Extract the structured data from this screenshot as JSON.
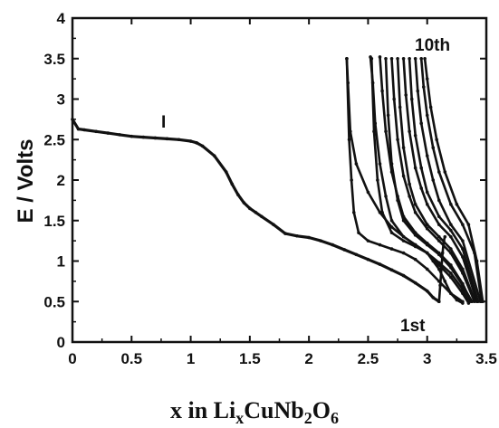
{
  "chart_data": {
    "type": "line",
    "title": "",
    "xlabel": {
      "base": "x in Li",
      "sub1": "x",
      "mid": "CuNb",
      "sub2": "2",
      "tail": "O",
      "sub3": "6"
    },
    "ylabel": "E / Volts",
    "xlim": [
      0,
      3.5
    ],
    "ylim": [
      0,
      4
    ],
    "x_ticks": [
      "0",
      "0.5",
      "1",
      "1.5",
      "2",
      "2.5",
      "3",
      "3.5"
    ],
    "y_ticks": [
      "0",
      "0.5",
      "1",
      "1.5",
      "2",
      "2.5",
      "3",
      "3.5",
      "4"
    ],
    "annotations": {
      "discharge_label": "I",
      "first_cycle": "1st",
      "tenth_cycle": "10th"
    },
    "color": "#111111",
    "series": [
      {
        "values_x": [
          0.0,
          0.05,
          0.1,
          0.2,
          0.3,
          0.4,
          0.5,
          0.6,
          0.7,
          0.8,
          0.9,
          1.0,
          1.05,
          1.1,
          1.2,
          1.3,
          1.35,
          1.4,
          1.45,
          1.5,
          1.55,
          1.6,
          1.7,
          1.8,
          1.9,
          2.0,
          2.1,
          2.2,
          2.3,
          2.4,
          2.5,
          2.6,
          2.7,
          2.8,
          2.9,
          3.0,
          3.05,
          3.1
        ],
        "values_y": [
          2.75,
          2.63,
          2.62,
          2.6,
          2.58,
          2.56,
          2.54,
          2.53,
          2.52,
          2.51,
          2.5,
          2.48,
          2.46,
          2.42,
          2.3,
          2.1,
          1.95,
          1.82,
          1.72,
          1.65,
          1.6,
          1.55,
          1.45,
          1.34,
          1.31,
          1.29,
          1.25,
          1.2,
          1.14,
          1.08,
          1.02,
          0.96,
          0.89,
          0.82,
          0.73,
          0.63,
          0.55,
          0.5
        ]
      },
      {
        "values_x": [
          3.1,
          3.11,
          3.12,
          3.13,
          3.14,
          3.15
        ],
        "values_y": [
          0.5,
          0.7,
          0.9,
          1.1,
          1.25,
          1.3
        ]
      },
      {
        "values_x": [
          2.32,
          2.33,
          2.35,
          2.4,
          2.5,
          2.6,
          2.7,
          2.8,
          2.9,
          3.0,
          3.05,
          3.1,
          3.15,
          3.2,
          3.25,
          3.3
        ],
        "values_y": [
          3.5,
          3.2,
          2.6,
          2.2,
          1.85,
          1.6,
          1.42,
          1.3,
          1.2,
          1.1,
          1.0,
          0.9,
          0.75,
          0.6,
          0.52,
          0.48
        ]
      },
      {
        "values_x": [
          2.32,
          2.34,
          2.36,
          2.38,
          2.42,
          2.5,
          2.6,
          2.7,
          2.8,
          2.9,
          3.0,
          3.1,
          3.2,
          3.3
        ],
        "values_y": [
          3.5,
          2.5,
          2.0,
          1.6,
          1.35,
          1.25,
          1.2,
          1.15,
          1.1,
          1.02,
          0.9,
          0.75,
          0.6,
          0.5
        ]
      },
      {
        "values_x": [
          2.52,
          2.54,
          2.56,
          2.6,
          2.65,
          2.7,
          2.8,
          2.9,
          3.0,
          3.1,
          3.2,
          3.3,
          3.35
        ],
        "values_y": [
          3.52,
          3.2,
          2.7,
          2.2,
          1.8,
          1.5,
          1.3,
          1.2,
          1.1,
          0.95,
          0.8,
          0.6,
          0.48
        ]
      },
      {
        "values_x": [
          2.53,
          2.55,
          2.58,
          2.62,
          2.7,
          2.8,
          2.9,
          3.0,
          3.1,
          3.2,
          3.3,
          3.35
        ],
        "values_y": [
          3.5,
          2.6,
          2.0,
          1.6,
          1.35,
          1.25,
          1.18,
          1.1,
          0.98,
          0.85,
          0.65,
          0.5
        ]
      },
      {
        "values_x": [
          2.6,
          2.62,
          2.65,
          2.7,
          2.75,
          2.8,
          2.9,
          3.0,
          3.1,
          3.2,
          3.3,
          3.37
        ],
        "values_y": [
          3.52,
          3.1,
          2.6,
          2.1,
          1.8,
          1.55,
          1.35,
          1.22,
          1.1,
          0.95,
          0.72,
          0.5
        ]
      },
      {
        "values_x": [
          2.65,
          2.67,
          2.7,
          2.75,
          2.8,
          2.9,
          3.0,
          3.1,
          3.2,
          3.3,
          3.38
        ],
        "values_y": [
          3.5,
          2.8,
          2.2,
          1.75,
          1.5,
          1.32,
          1.2,
          1.08,
          0.92,
          0.7,
          0.5
        ]
      },
      {
        "values_x": [
          2.7,
          2.72,
          2.75,
          2.8,
          2.85,
          2.9,
          3.0,
          3.1,
          3.2,
          3.3,
          3.4
        ],
        "values_y": [
          3.5,
          3.0,
          2.5,
          2.05,
          1.8,
          1.6,
          1.4,
          1.25,
          1.1,
          0.85,
          0.5
        ]
      },
      {
        "values_x": [
          2.75,
          2.77,
          2.8,
          2.85,
          2.9,
          3.0,
          3.1,
          3.2,
          3.3,
          3.4
        ],
        "values_y": [
          3.5,
          2.9,
          2.4,
          1.95,
          1.7,
          1.45,
          1.3,
          1.15,
          0.9,
          0.52
        ]
      },
      {
        "values_x": [
          2.8,
          2.82,
          2.85,
          2.9,
          2.95,
          3.0,
          3.1,
          3.2,
          3.3,
          3.42
        ],
        "values_y": [
          3.5,
          3.05,
          2.6,
          2.15,
          1.9,
          1.7,
          1.45,
          1.3,
          1.05,
          0.5
        ]
      },
      {
        "values_x": [
          2.85,
          2.87,
          2.9,
          2.95,
          3.0,
          3.1,
          3.2,
          3.3,
          3.43
        ],
        "values_y": [
          3.5,
          3.0,
          2.55,
          2.15,
          1.85,
          1.55,
          1.38,
          1.15,
          0.5
        ]
      },
      {
        "values_x": [
          2.9,
          2.92,
          2.95,
          3.0,
          3.05,
          3.1,
          3.2,
          3.3,
          3.45
        ],
        "values_y": [
          3.5,
          3.1,
          2.7,
          2.3,
          2.0,
          1.75,
          1.45,
          1.25,
          0.5
        ]
      },
      {
        "values_x": [
          2.95,
          2.97,
          3.0,
          3.05,
          3.1,
          3.2,
          3.3,
          3.4,
          3.46
        ],
        "values_y": [
          3.5,
          3.15,
          2.8,
          2.4,
          2.1,
          1.7,
          1.45,
          1.1,
          0.5
        ]
      },
      {
        "values_x": [
          2.98,
          3.0,
          3.03,
          3.08,
          3.15,
          3.25,
          3.35,
          3.42,
          3.47
        ],
        "values_y": [
          3.5,
          3.25,
          2.9,
          2.5,
          2.1,
          1.7,
          1.45,
          1.0,
          0.5
        ]
      }
    ]
  }
}
